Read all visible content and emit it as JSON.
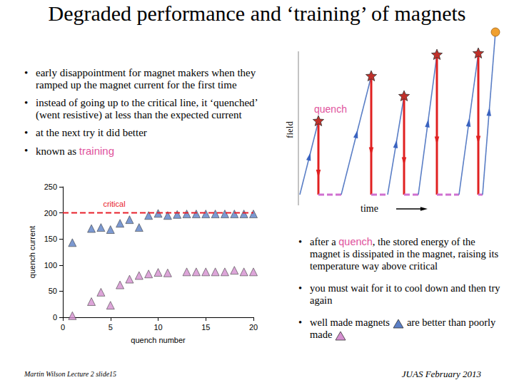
{
  "title": "Degraded performance and ‘training’ of magnets",
  "bullets_left": [
    [
      {
        "text": "early disappointment for magnet makers when they ramped up the magnet current for the first time"
      }
    ],
    [
      {
        "text": "instead of going up to the critical line, it ‘quenched’ (went resistive) at less than the expected current"
      }
    ],
    [
      {
        "text": "at the next try it did better"
      }
    ],
    [
      {
        "text": "known as "
      },
      {
        "text": "training",
        "highlight": true
      }
    ]
  ],
  "diagram": {
    "y_label": "field",
    "x_label": "time",
    "quench_label": "quench"
  },
  "bullets_right": [
    [
      {
        "text": "after a "
      },
      {
        "text": "quench",
        "highlight": true
      },
      {
        "text": ", the stored energy of the magnet is dissipated in the magnet, raising its temperature way above critical"
      }
    ],
    [
      {
        "text": "you must wait for it to cool down and then try again"
      }
    ],
    [
      {
        "text": "well made magnets"
      },
      {
        "text": "are better than poorly made"
      }
    ]
  ],
  "footer": {
    "left": "Martin Wilson Lecture 2 slide15",
    "right": "JUAS February 2013"
  },
  "chart_data": {
    "type": "scatter",
    "x_label": "quench number",
    "y_label": "quench current",
    "xlim": [
      0,
      20
    ],
    "xticks": [
      0,
      5,
      10,
      15,
      20
    ],
    "ylim": [
      0,
      250
    ],
    "yticks": [
      0,
      50,
      100,
      150,
      200,
      250
    ],
    "grid": false,
    "series": [
      {
        "color": "#5b7fc6",
        "marker": "triangle",
        "x": [
          1,
          3,
          4,
          5,
          6,
          7,
          8,
          9,
          10,
          11,
          12,
          13,
          14,
          15,
          16,
          17,
          18,
          19,
          20
        ],
        "values": [
          143,
          170,
          172,
          168,
          180,
          187,
          172,
          195,
          199,
          195,
          197,
          198,
          198,
          198,
          198,
          198,
          198,
          198,
          198
        ]
      },
      {
        "color": "#d58fd0",
        "marker": "triangle",
        "x": [
          1,
          3,
          4,
          5,
          6,
          7,
          8,
          9,
          10,
          11,
          13,
          14,
          15,
          16,
          17,
          18,
          19,
          20
        ],
        "values": [
          3,
          30,
          48,
          23,
          62,
          73,
          80,
          83,
          86,
          85,
          87,
          87,
          87,
          87,
          87,
          90,
          87,
          87
        ]
      },
      {
        "name": "critical",
        "type": "line",
        "line_style": "dashed",
        "color": "#e8202a",
        "x": [
          0,
          20
        ],
        "values": [
          200,
          200
        ]
      }
    ]
  }
}
